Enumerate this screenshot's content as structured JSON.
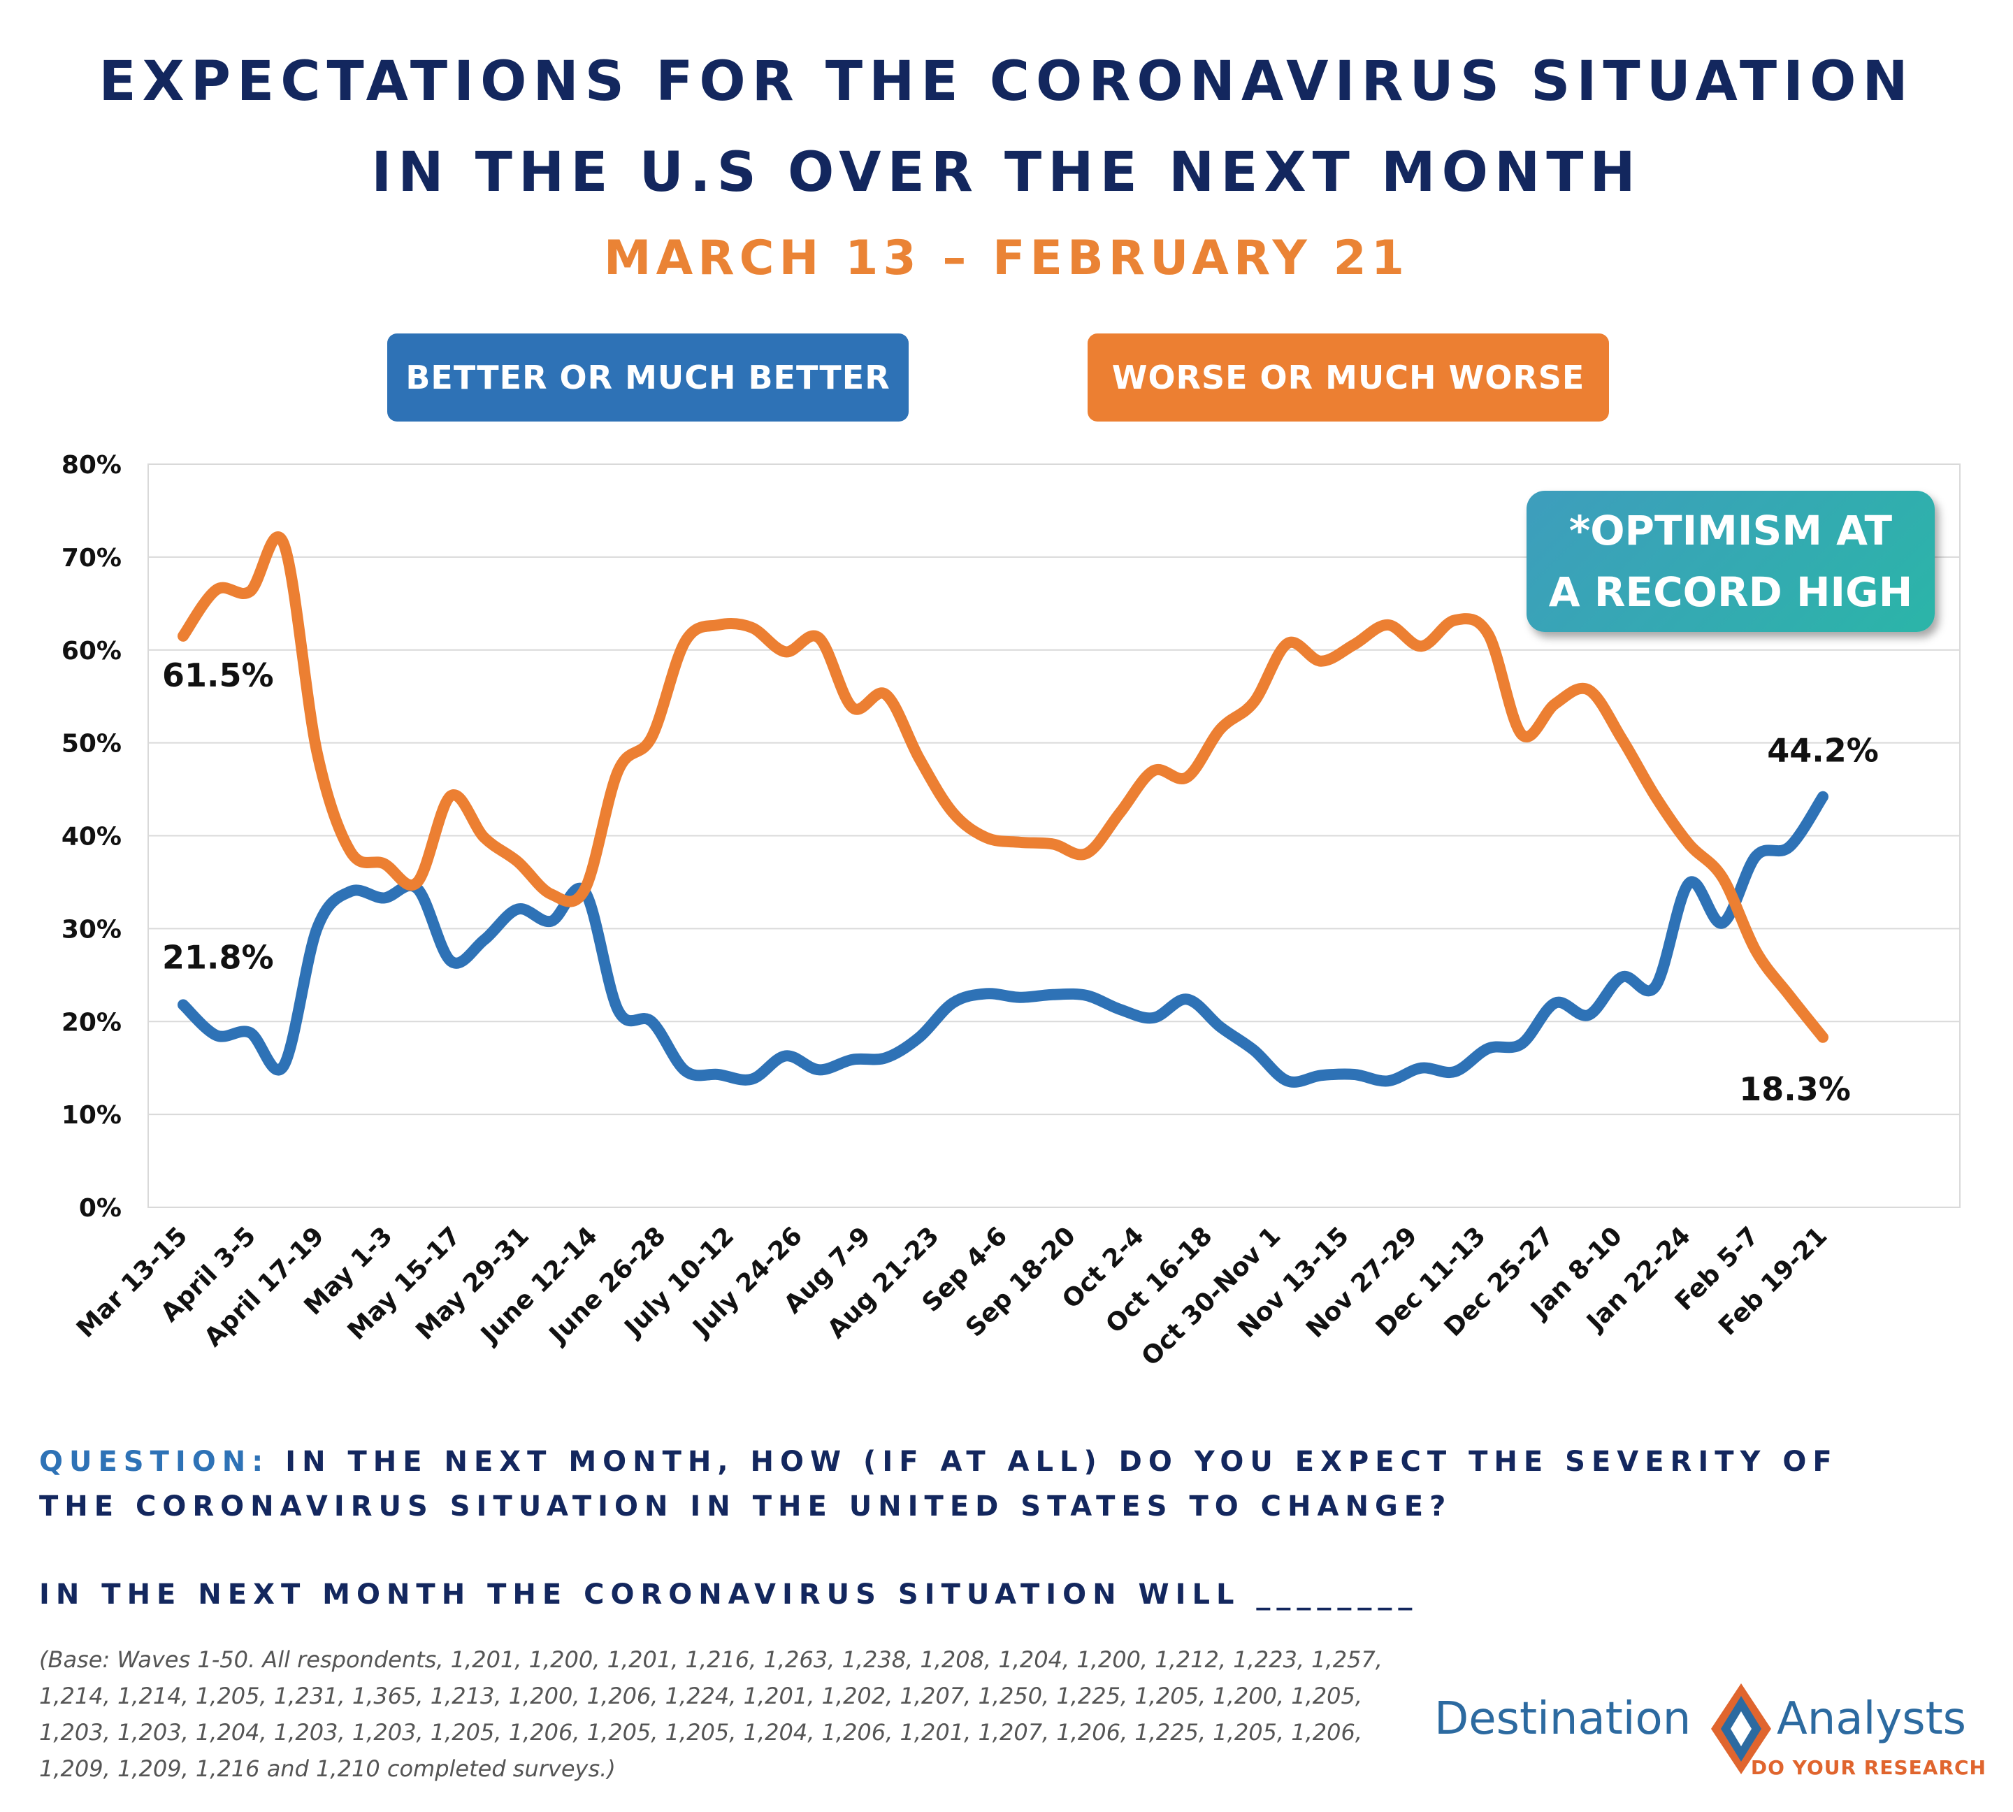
{
  "title_line1": "EXPECTATIONS FOR THE CORONAVIRUS SITUATION",
  "title_line2": "IN THE U.S OVER THE NEXT MONTH",
  "subtitle": "MARCH 13 – FEBRUARY 21",
  "callout_line1": "*OPTIMISM AT",
  "callout_line2": "A RECORD HIGH",
  "question_label": "QUESTION:",
  "question_line1": "IN THE NEXT MONTH, HOW (IF AT ALL) DO YOU EXPECT THE SEVERITY OF",
  "question_line2": "THE CORONAVIRUS SITUATION IN THE UNITED STATES TO CHANGE?",
  "prompt": "IN THE NEXT MONTH THE CORONAVIRUS SITUATION WILL ________",
  "base_note": "(Base: Waves 1-50. All respondents, 1,201, 1,200, 1,201, 1,216, 1,263, 1,238, 1,208, 1,204, 1,200, 1,212, 1,223, 1,257, 1,214, 1,214, 1,205, 1,231, 1,365, 1,213, 1,200, 1,206, 1,224, 1,201, 1,202, 1,207, 1,250, 1,225, 1,205, 1,200, 1,205, 1,203, 1,203, 1,204, 1,203, 1,203, 1,205, 1,206, 1,205, 1,205, 1,204, 1,206, 1,201, 1,207, 1,206, 1,225, 1,205, 1,206, 1,209, 1,209, 1,216 and 1,210 completed surveys.)",
  "logo": {
    "left": "Destination",
    "right": "Analysts",
    "tagline": "DO YOUR RESEARCH",
    "colors": {
      "blue": "#2c6aa0",
      "orange": "#e0652e"
    }
  },
  "colors": {
    "better": "#2e72b6",
    "worse": "#ec7f32",
    "title": "#13275e",
    "subtitle": "#ea8335",
    "callout": "#2bb5a8"
  },
  "chart_data": {
    "type": "line",
    "ylim": [
      0,
      80
    ],
    "yticks": [
      "0%",
      "10%",
      "20%",
      "30%",
      "40%",
      "50%",
      "60%",
      "70%",
      "80%"
    ],
    "grid": true,
    "legend_placement": "top",
    "x_labels": [
      "Mar 13-15",
      "April 3-5",
      "April 17-19",
      "May 1-3",
      "May 15-17",
      "May 29-31",
      "June 12-14",
      "June 26-28",
      "July 10-12",
      "July 24-26",
      "Aug 7-9",
      "Aug 21-23",
      "Sep 4-6",
      "Sep 18-20",
      "Oct 2-4",
      "Oct 16-18",
      "Oct 30-Nov 1",
      "Nov 13-15",
      "Nov 27-29",
      "Dec 11-13",
      "Dec 25-27",
      "Jan 8-10",
      "Jan 22-24",
      "Feb 5-7",
      "Feb 19-21"
    ],
    "series": [
      {
        "name": "BETTER OR MUCH BETTER",
        "color": "#2e72b6",
        "values": [
          21.8,
          18.5,
          18.8,
          15.2,
          30.0,
          34.0,
          33.3,
          34.3,
          26.5,
          28.8,
          32.1,
          30.8,
          34.0,
          21.2,
          20.0,
          14.7,
          14.3,
          13.8,
          16.3,
          14.8,
          15.9,
          16.1,
          18.3,
          22.0,
          23.0,
          22.6,
          22.9,
          22.8,
          21.3,
          20.4,
          22.4,
          19.4,
          16.9,
          13.6,
          14.2,
          14.3,
          13.6,
          15.0,
          14.6,
          17.1,
          17.6,
          22.0,
          20.7,
          24.8,
          23.8,
          34.9,
          30.6,
          37.8,
          38.8,
          44.2
        ]
      },
      {
        "name": "WORSE OR MUCH WORSE",
        "color": "#ec7f32",
        "values": [
          61.5,
          66.5,
          66.3,
          71.5,
          49.0,
          38.3,
          37.0,
          35.0,
          44.3,
          39.8,
          37.2,
          33.7,
          34.2,
          47.0,
          50.6,
          60.9,
          62.7,
          62.4,
          59.8,
          61.3,
          53.8,
          55.2,
          48.3,
          42.5,
          39.8,
          39.3,
          39.1,
          38.1,
          42.5,
          47.0,
          46.3,
          51.5,
          54.4,
          60.7,
          58.8,
          60.6,
          62.7,
          60.4,
          63.2,
          61.7,
          50.9,
          54.2,
          55.7,
          50.4,
          44.2,
          39.1,
          35.5,
          27.6,
          22.8,
          18.3
        ]
      }
    ],
    "data_labels": [
      {
        "text": "61.5%",
        "series": 1,
        "index": 0
      },
      {
        "text": "21.8%",
        "series": 0,
        "index": 0
      },
      {
        "text": "44.2%",
        "series": 0,
        "index": 49
      },
      {
        "text": "18.3%",
        "series": 1,
        "index": 49
      }
    ]
  }
}
